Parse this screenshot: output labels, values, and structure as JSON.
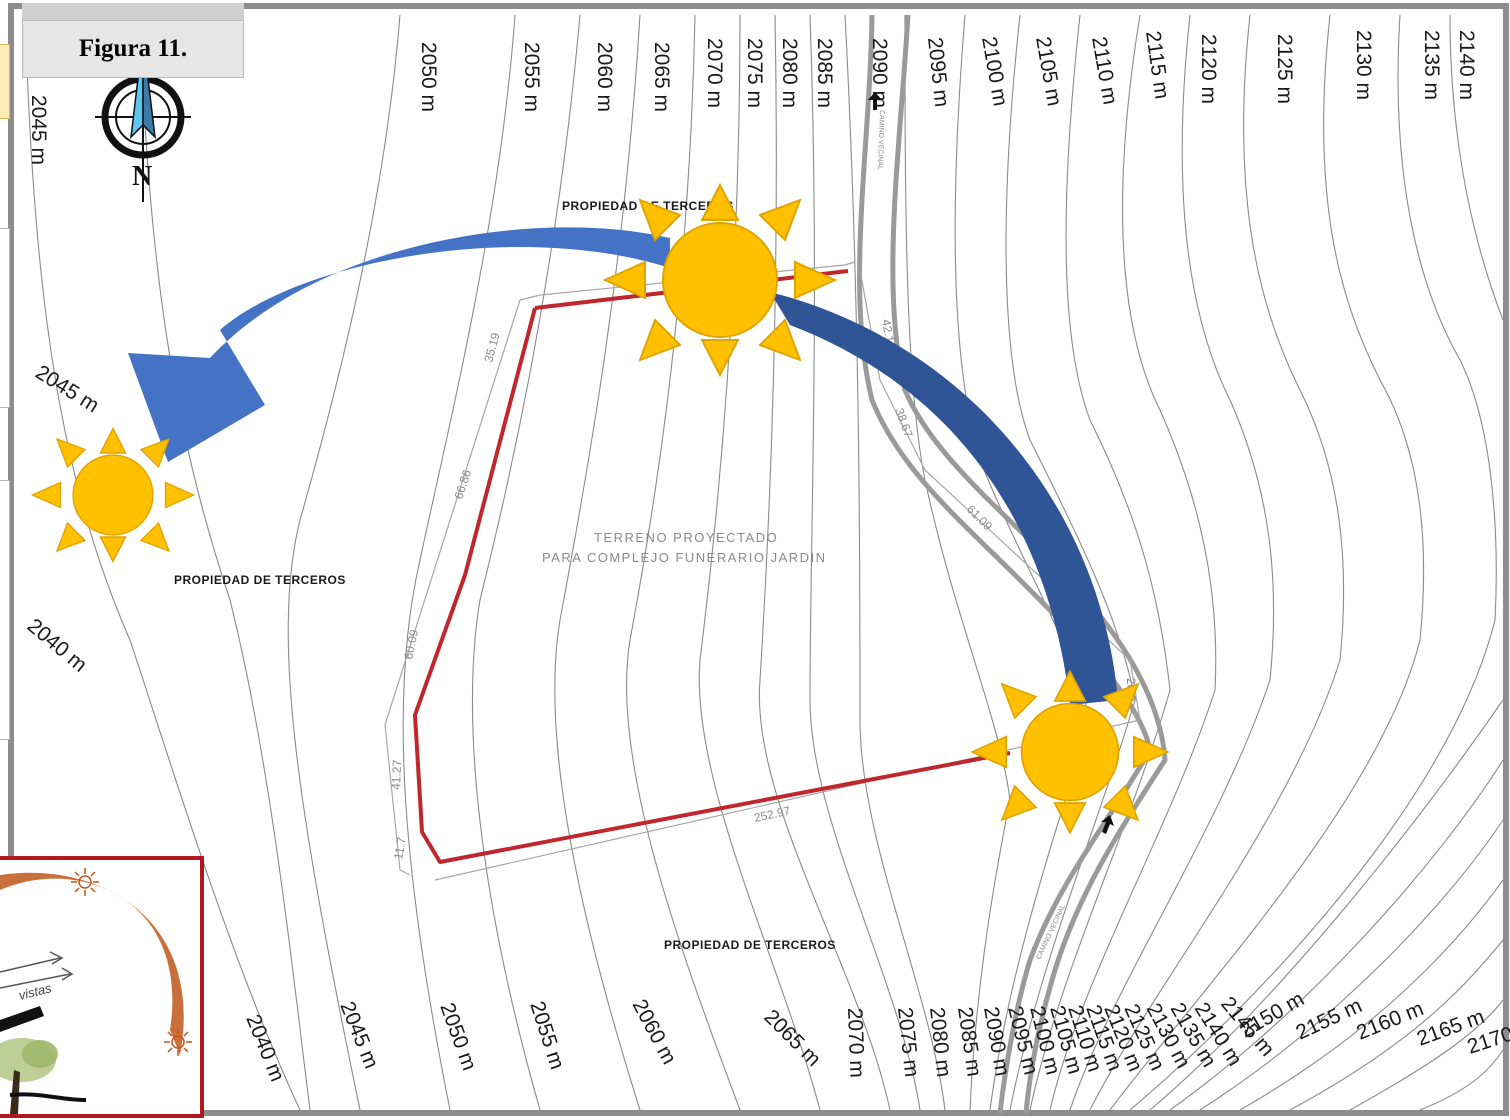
{
  "figure_label": "Figura 11.",
  "north_label": "N",
  "contour_labels_top": [
    "2045 m",
    "2050 m",
    "2055 m",
    "2060 m",
    "2065 m",
    "2070 m",
    "2075 m",
    "2080 m",
    "2085 m",
    "2090 m",
    "2095 m",
    "2100 m",
    "2105 m",
    "2110 m",
    "2115 m",
    "2120 m",
    "2125 m",
    "2130 m",
    "2135 m",
    "2140 m"
  ],
  "contour_labels_left": [
    "2045 m",
    "2040 m"
  ],
  "contour_labels_bottom": [
    "2040 m",
    "2045 m",
    "2050 m",
    "2055 m",
    "2060 m",
    "2065 m",
    "2070 m",
    "2075 m",
    "2080 m",
    "2085 m",
    "2090 m",
    "2095 m",
    "2100 m",
    "2105 m",
    "2110 m",
    "2115 m",
    "2120 m",
    "2125 m",
    "2130 m",
    "2135 m",
    "2140 m",
    "2145 m",
    "2150 m",
    "2155 m",
    "2160 m",
    "2165 m",
    "2170 m"
  ],
  "parcel_labels": {
    "north": "PROPIEDAD DE TERCEROS",
    "west": "PROPIEDAD DE TERCEROS",
    "south": "PROPIEDAD DE TERCEROS"
  },
  "terreno": {
    "line1": "TERRENO PROYECTADO",
    "line2": "PARA COMPLEJO FUNERARIO JARDIN"
  },
  "dimensions": [
    "35.19",
    "66.86",
    "60.09",
    "41.27",
    "11.7",
    "252.97",
    "42.16",
    "38.67",
    "61.09",
    "20.0"
  ],
  "inset": {
    "label": "vistas"
  },
  "colors": {
    "boundary": "#c0272d",
    "sun_fill": "#ffc000",
    "sun_stroke": "#e0a400",
    "arrow_west": "#4472c4",
    "arrow_east": "#2f5597",
    "inset_border": "#b0171f",
    "inset_arc": "#c0561a"
  },
  "icons": [
    "compass-rose-icon",
    "sun-icon",
    "curved-arrow-icon"
  ]
}
